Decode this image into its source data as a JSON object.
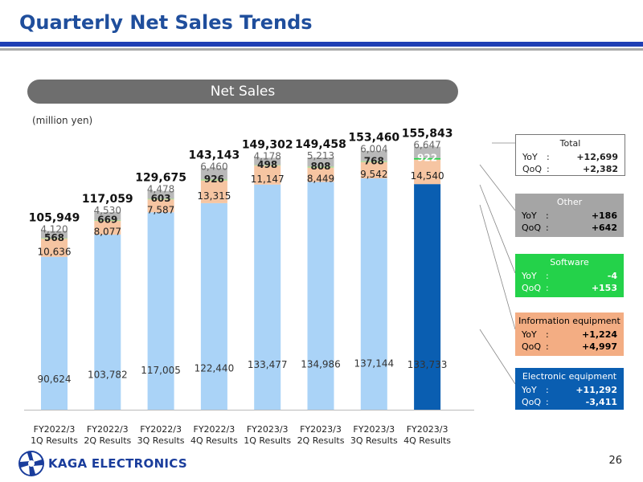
{
  "header": {
    "title": "Quarterly Net Sales Trends"
  },
  "banner": {
    "label": "Net Sales"
  },
  "unit_label": "(million yen)",
  "colors": {
    "electronic": "#aad3f7",
    "electronic_latest": "#0a5eb1",
    "information": "#f6c5a2",
    "software": "#acd593",
    "other": "#b9b9b9",
    "software_highlight": "#24d24a"
  },
  "chart_data": {
    "type": "bar",
    "stacked": true,
    "title": "Net Sales",
    "ylabel": "(million yen)",
    "ylim": [
      0,
      160000
    ],
    "categories": [
      [
        "FY2022/3",
        "1Q Results"
      ],
      [
        "FY2022/3",
        "2Q Results"
      ],
      [
        "FY2022/3",
        "3Q Results"
      ],
      [
        "FY2022/3",
        "4Q Results"
      ],
      [
        "FY2023/3",
        "1Q Results"
      ],
      [
        "FY2023/3",
        "2Q Results"
      ],
      [
        "FY2023/3",
        "3Q Results"
      ],
      [
        "FY2023/3",
        "4Q Results"
      ]
    ],
    "series": [
      {
        "name": "Electronic equipment",
        "values": [
          "90,624",
          "103,782",
          "117,005",
          "122,440",
          "133,477",
          "134,986",
          "137,144",
          "133,733"
        ]
      },
      {
        "name": "Information equipment",
        "values": [
          "10,636",
          "8,077",
          "7,587",
          "13,315",
          "11,147",
          "8,449",
          "9,542",
          "14,540"
        ]
      },
      {
        "name": "Software",
        "values": [
          "568",
          "669",
          "603",
          "926",
          "498",
          "808",
          "768",
          "922"
        ]
      },
      {
        "name": "Other",
        "values": [
          "4,120",
          "4,530",
          "4,478",
          "6,460",
          "4,178",
          "5,213",
          "6,004",
          "6,647"
        ]
      }
    ],
    "totals": [
      "105,949",
      "117,059",
      "129,675",
      "143,143",
      "149,302",
      "149,458",
      "153,460",
      "155,843"
    ]
  },
  "legend": {
    "total": {
      "title": "Total",
      "yoy_label": "YoY",
      "qoq_label": "QoQ",
      "sep": ":",
      "yoy": "+12,699",
      "qoq": "+2,382"
    },
    "other": {
      "title": "Other",
      "yoy_label": "YoY",
      "qoq_label": "QoQ",
      "sep": ":",
      "yoy": "+186",
      "qoq": "+642"
    },
    "software": {
      "title": "Software",
      "yoy_label": "YoY",
      "qoq_label": "QoQ",
      "sep": ":",
      "yoy": "-4",
      "qoq": "+153"
    },
    "information": {
      "title": "Information equipment",
      "yoy_label": "YoY",
      "qoq_label": "QoQ",
      "sep": ":",
      "yoy": "+1,224",
      "qoq": "+4,997"
    },
    "electronic": {
      "title": "Electronic equipment",
      "yoy_label": "YoY",
      "qoq_label": "QoQ",
      "sep": ":",
      "yoy": "+11,292",
      "qoq": "-3,411"
    }
  },
  "footer": {
    "company": "KAGA ELECTRONICS",
    "page": "26"
  }
}
